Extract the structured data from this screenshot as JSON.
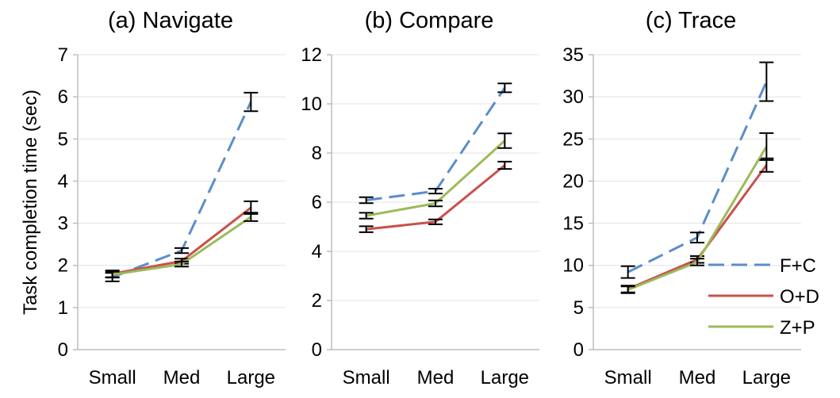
{
  "chart_data": {
    "type": "line",
    "ylabel": "Task completion time (sec)",
    "categories": [
      "Small",
      "Med",
      "Large"
    ],
    "legend": {
      "placement": "bottom-right of panel (c)",
      "entries": [
        {
          "name": "F+C",
          "color": "#5b8ec9",
          "dash": "dashed"
        },
        {
          "name": "O+D",
          "color": "#c9504c",
          "dash": "solid"
        },
        {
          "name": "Z+P",
          "color": "#9bbb59",
          "dash": "solid"
        }
      ]
    },
    "panels": [
      {
        "title": "(a) Navigate",
        "ylim": [
          0,
          7
        ],
        "yticks": [
          "0",
          "1",
          "2",
          "3",
          "4",
          "5",
          "6",
          "7"
        ],
        "series": [
          {
            "name": "F+C",
            "values": [
              1.72,
              2.35,
              5.88
            ],
            "err": [
              0.1,
              0.06,
              0.22
            ]
          },
          {
            "name": "O+D",
            "values": [
              1.8,
              2.1,
              3.37
            ],
            "err": [
              0.08,
              0.06,
              0.15
            ]
          },
          {
            "name": "Z+P",
            "values": [
              1.78,
              2.03,
              3.15
            ],
            "err": [
              0.07,
              0.06,
              0.1
            ]
          }
        ]
      },
      {
        "title": "(b) Compare",
        "ylim": [
          0,
          12
        ],
        "yticks": [
          "0",
          "2",
          "4",
          "6",
          "8",
          "10",
          "12"
        ],
        "series": [
          {
            "name": "F+C",
            "values": [
              6.08,
              6.45,
              10.65
            ],
            "err": [
              0.12,
              0.1,
              0.18
            ]
          },
          {
            "name": "O+D",
            "values": [
              4.9,
              5.2,
              7.5
            ],
            "err": [
              0.12,
              0.1,
              0.15
            ]
          },
          {
            "name": "Z+P",
            "values": [
              5.45,
              5.95,
              8.5
            ],
            "err": [
              0.12,
              0.12,
              0.3
            ]
          }
        ]
      },
      {
        "title": "(c) Trace",
        "ylim": [
          0,
          35
        ],
        "yticks": [
          "0",
          "5",
          "10",
          "15",
          "20",
          "25",
          "30",
          "35"
        ],
        "series": [
          {
            "name": "F+C",
            "values": [
              9.2,
              13.3,
              31.8
            ],
            "err": [
              0.7,
              0.6,
              2.3
            ]
          },
          {
            "name": "O+D",
            "values": [
              7.2,
              10.7,
              21.9
            ],
            "err": [
              0.4,
              0.4,
              0.8
            ]
          },
          {
            "name": "Z+P",
            "values": [
              7.1,
              10.4,
              24.1
            ],
            "err": [
              0.4,
              0.4,
              1.6
            ]
          }
        ]
      }
    ]
  }
}
